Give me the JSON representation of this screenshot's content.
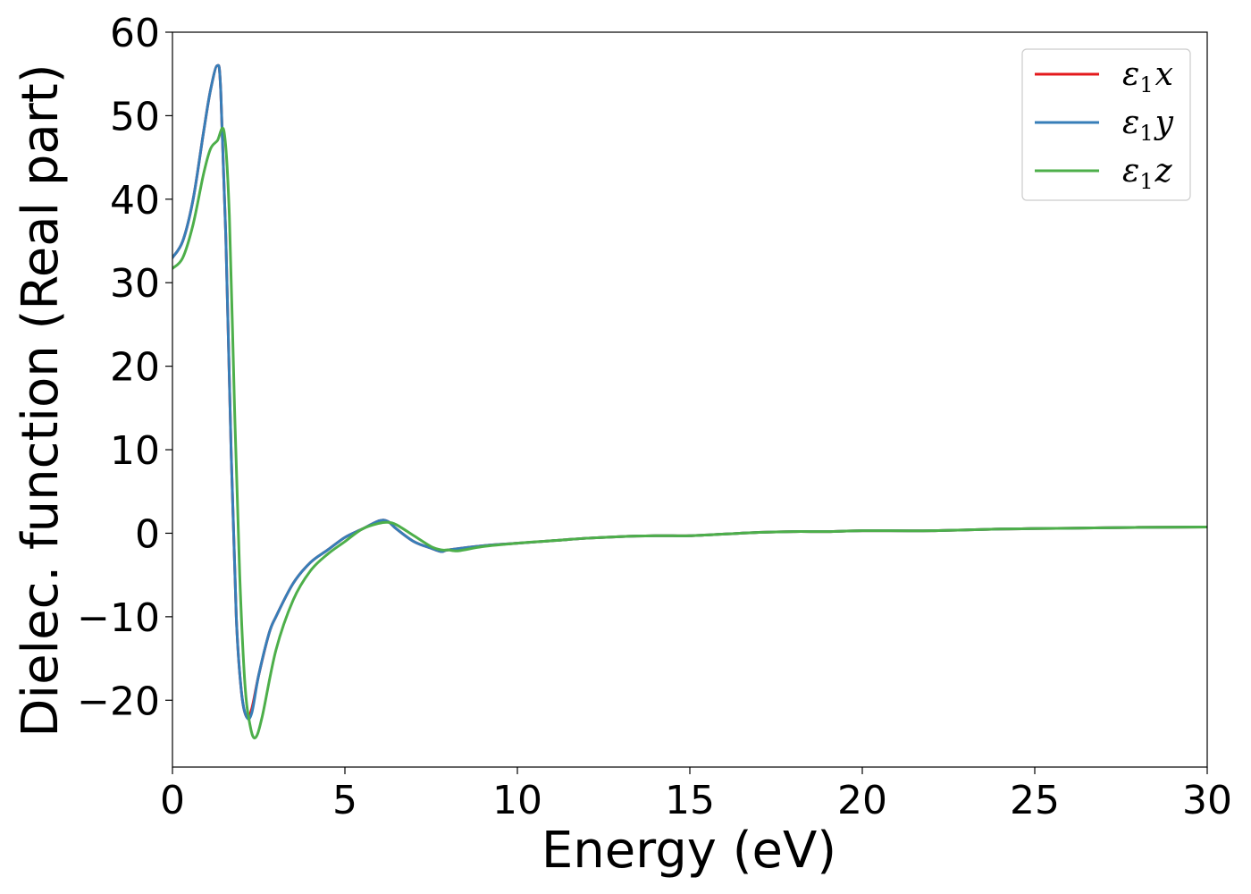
{
  "chart_data": {
    "type": "line",
    "xlabel": "Energy (eV)",
    "ylabel": "Dielec. function (Real part)",
    "xlim": [
      0,
      30
    ],
    "ylim": [
      -28,
      60
    ],
    "xticks": [
      0,
      5,
      10,
      15,
      20,
      25,
      30
    ],
    "xtick_labels": [
      "0",
      "5",
      "10",
      "15",
      "20",
      "25",
      "30"
    ],
    "yticks": [
      -20,
      -10,
      0,
      10,
      20,
      30,
      40,
      50,
      60
    ],
    "ytick_labels": [
      "−20",
      "−10",
      "0",
      "10",
      "20",
      "30",
      "40",
      "50",
      "60"
    ],
    "grid": false,
    "legend_position": "top-right",
    "series": [
      {
        "name": "ε₁x",
        "legend": {
          "base": "ε",
          "sub": "1",
          "suffix": "x"
        },
        "color": "#e41a1c",
        "x": [
          0,
          0.3,
          0.6,
          0.9,
          1.1,
          1.3,
          1.4,
          1.55,
          1.7,
          1.85,
          2.0,
          2.15,
          2.3,
          2.5,
          2.8,
          3.0,
          3.5,
          4.0,
          4.5,
          5.0,
          5.5,
          6.0,
          6.25,
          6.5,
          7.0,
          7.5,
          7.8,
          8.0,
          9.0,
          10.0,
          11.0,
          12.0,
          13.0,
          14.0,
          14.5,
          15.0,
          16.0,
          17.0,
          18.0,
          19.0,
          20.0,
          22.0,
          24.0,
          26.0,
          28.0,
          30.0
        ],
        "y": [
          33,
          35,
          40,
          48,
          53,
          56,
          53,
          35,
          10,
          -10,
          -19,
          -22,
          -21,
          -17,
          -12,
          -10,
          -6,
          -3.5,
          -2,
          -0.5,
          0.5,
          1.5,
          1.4,
          0.5,
          -1,
          -1.8,
          -2.2,
          -2,
          -1.5,
          -1.2,
          -0.9,
          -0.6,
          -0.4,
          -0.3,
          -0.3,
          -0.3,
          -0.1,
          0.1,
          0.2,
          0.2,
          0.3,
          0.3,
          0.5,
          0.6,
          0.7,
          0.75
        ]
      },
      {
        "name": "ε₁y",
        "legend": {
          "base": "ε",
          "sub": "1",
          "suffix": "y"
        },
        "color": "#377eb8",
        "x": [
          0,
          0.3,
          0.6,
          0.9,
          1.1,
          1.3,
          1.4,
          1.55,
          1.7,
          1.85,
          2.0,
          2.15,
          2.3,
          2.5,
          2.8,
          3.0,
          3.5,
          4.0,
          4.5,
          5.0,
          5.5,
          6.0,
          6.25,
          6.5,
          7.0,
          7.5,
          7.8,
          8.0,
          9.0,
          10.0,
          11.0,
          12.0,
          13.0,
          14.0,
          14.5,
          15.0,
          16.0,
          17.0,
          18.0,
          19.0,
          20.0,
          22.0,
          24.0,
          26.0,
          28.0,
          30.0
        ],
        "y": [
          33,
          35,
          40,
          48,
          53,
          56,
          53,
          35,
          10,
          -10,
          -19,
          -22,
          -21.5,
          -17,
          -12,
          -10,
          -6,
          -3.5,
          -2,
          -0.5,
          0.5,
          1.5,
          1.4,
          0.5,
          -1,
          -1.8,
          -2.2,
          -2,
          -1.5,
          -1.2,
          -0.9,
          -0.6,
          -0.4,
          -0.3,
          -0.3,
          -0.3,
          -0.1,
          0.1,
          0.2,
          0.2,
          0.3,
          0.3,
          0.5,
          0.6,
          0.7,
          0.75
        ]
      },
      {
        "name": "ε₁z",
        "legend": {
          "base": "ε",
          "sub": "1",
          "suffix": "z"
        },
        "color": "#4daf4a",
        "x": [
          0,
          0.3,
          0.6,
          0.9,
          1.1,
          1.3,
          1.5,
          1.65,
          1.8,
          1.95,
          2.1,
          2.25,
          2.4,
          2.6,
          3.0,
          3.5,
          4.0,
          4.5,
          5.0,
          5.5,
          6.0,
          6.25,
          6.5,
          7.0,
          7.5,
          7.8,
          8.0,
          8.3,
          9.0,
          10.0,
          11.0,
          12.0,
          13.0,
          14.0,
          14.5,
          15.0,
          16.0,
          17.0,
          18.0,
          19.0,
          20.0,
          22.0,
          24.0,
          26.0,
          28.0,
          30.0
        ],
        "y": [
          31.7,
          33,
          37,
          43,
          46,
          47,
          48,
          38,
          15,
          -5,
          -18,
          -23,
          -24.5,
          -22,
          -14,
          -8,
          -4.5,
          -2.5,
          -1,
          0.5,
          1.2,
          1.3,
          1,
          -0.3,
          -1.6,
          -2,
          -2,
          -2.1,
          -1.6,
          -1.2,
          -0.9,
          -0.6,
          -0.4,
          -0.3,
          -0.3,
          -0.3,
          -0.1,
          0.1,
          0.2,
          0.2,
          0.3,
          0.3,
          0.5,
          0.6,
          0.7,
          0.75
        ]
      }
    ]
  }
}
